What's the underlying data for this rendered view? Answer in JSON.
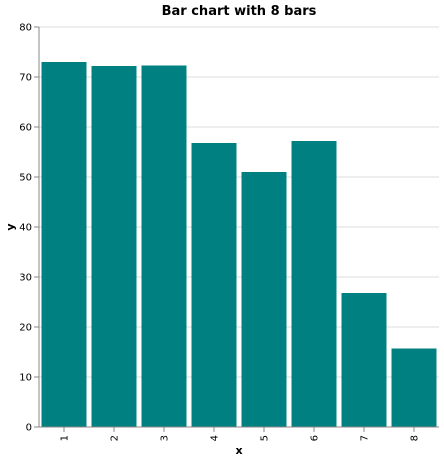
{
  "chart_data": {
    "type": "bar",
    "title": "Bar chart with 8 bars",
    "xlabel": "x",
    "ylabel": "y",
    "categories": [
      "1",
      "2",
      "3",
      "4",
      "5",
      "6",
      "7",
      "8"
    ],
    "values": [
      73,
      72.2,
      72.3,
      56.8,
      51,
      57.2,
      26.8,
      15.7
    ],
    "ylim": [
      0,
      80
    ],
    "yticks": [
      0,
      10,
      20,
      30,
      40,
      50,
      60,
      70,
      80
    ],
    "grid": true,
    "legend": "none",
    "bar_color": "#008080"
  }
}
